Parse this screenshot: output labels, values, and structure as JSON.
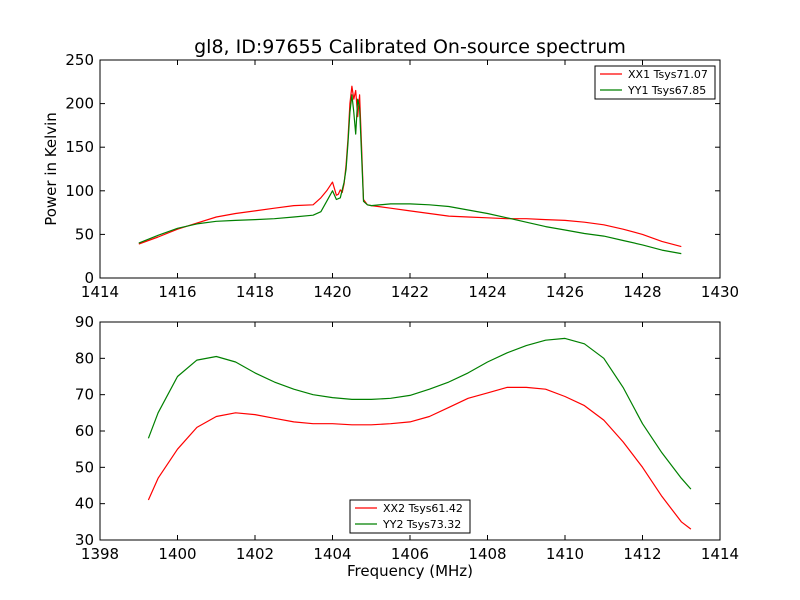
{
  "chart_data": [
    {
      "type": "line",
      "title": "gl8, ID:97655 Calibrated On-source spectrum",
      "xlabel": "",
      "ylabel": "Power in Kelvin",
      "xlim": [
        1414,
        1430
      ],
      "ylim": [
        0,
        250
      ],
      "xticks": [
        1414,
        1416,
        1418,
        1420,
        1422,
        1424,
        1426,
        1428,
        1430
      ],
      "yticks": [
        0,
        50,
        100,
        150,
        200,
        250
      ],
      "legend_position": "top-right",
      "series": [
        {
          "name": "XX1 Tsys71.07",
          "color": "#ff0000",
          "x": [
            1415.0,
            1415.5,
            1416.0,
            1416.5,
            1417.0,
            1417.5,
            1418.0,
            1418.5,
            1419.0,
            1419.5,
            1419.7,
            1419.85,
            1420.0,
            1420.1,
            1420.15,
            1420.2,
            1420.25,
            1420.3,
            1420.35,
            1420.4,
            1420.45,
            1420.5,
            1420.55,
            1420.6,
            1420.65,
            1420.7,
            1420.75,
            1420.8,
            1420.9,
            1421.0,
            1421.5,
            1422.0,
            1422.5,
            1423.0,
            1423.5,
            1424.0,
            1424.5,
            1425.0,
            1425.5,
            1426.0,
            1426.5,
            1427.0,
            1427.5,
            1428.0,
            1428.5,
            1429.0
          ],
          "y": [
            39,
            47,
            56,
            63,
            70,
            74,
            77,
            80,
            83,
            84,
            92,
            100,
            110,
            95,
            96,
            101,
            98,
            108,
            130,
            160,
            200,
            220,
            205,
            215,
            185,
            210,
            150,
            90,
            84,
            83,
            80,
            77,
            74,
            71,
            70,
            69,
            68,
            68,
            67,
            66,
            64,
            61,
            56,
            50,
            42,
            36
          ]
        },
        {
          "name": "YY1 Tsys67.85",
          "color": "#008000",
          "x": [
            1415.0,
            1415.5,
            1416.0,
            1416.5,
            1417.0,
            1417.5,
            1418.0,
            1418.5,
            1419.0,
            1419.5,
            1419.7,
            1419.85,
            1420.0,
            1420.1,
            1420.2,
            1420.3,
            1420.35,
            1420.4,
            1420.45,
            1420.5,
            1420.55,
            1420.6,
            1420.65,
            1420.7,
            1420.75,
            1420.8,
            1420.9,
            1421.0,
            1421.5,
            1422.0,
            1422.5,
            1423.0,
            1423.5,
            1424.0,
            1424.5,
            1425.0,
            1425.5,
            1426.0,
            1426.5,
            1427.0,
            1427.5,
            1428.0,
            1428.5,
            1429.0
          ],
          "y": [
            40,
            49,
            57,
            62,
            65,
            66,
            67,
            68,
            70,
            72,
            76,
            88,
            100,
            90,
            92,
            110,
            125,
            155,
            190,
            210,
            190,
            165,
            205,
            195,
            140,
            88,
            84,
            83,
            85,
            85,
            84,
            82,
            78,
            74,
            69,
            64,
            59,
            55,
            51,
            48,
            43,
            38,
            32,
            28
          ]
        }
      ]
    },
    {
      "type": "line",
      "title": "",
      "xlabel": "Frequency (MHz)",
      "ylabel": "",
      "xlim": [
        1398,
        1414
      ],
      "ylim": [
        30,
        90
      ],
      "xticks": [
        1398,
        1400,
        1402,
        1404,
        1406,
        1408,
        1410,
        1412,
        1414
      ],
      "yticks": [
        30,
        40,
        50,
        60,
        70,
        80,
        90
      ],
      "legend_position": "bottom-center",
      "series": [
        {
          "name": "XX2 Tsys61.42",
          "color": "#ff0000",
          "x": [
            1399.25,
            1399.5,
            1400.0,
            1400.5,
            1401.0,
            1401.5,
            1402.0,
            1402.5,
            1403.0,
            1403.5,
            1404.0,
            1404.5,
            1405.0,
            1405.5,
            1406.0,
            1406.5,
            1407.0,
            1407.5,
            1408.0,
            1408.5,
            1409.0,
            1409.5,
            1410.0,
            1410.5,
            1411.0,
            1411.5,
            1412.0,
            1412.5,
            1413.0,
            1413.25
          ],
          "y": [
            41,
            47,
            55,
            61,
            64,
            65,
            64.5,
            63.5,
            62.5,
            62,
            62,
            61.7,
            61.7,
            62,
            62.5,
            64,
            66.5,
            69,
            70.5,
            72,
            72,
            71.5,
            69.5,
            67,
            63,
            57,
            50,
            42,
            35,
            33
          ]
        },
        {
          "name": "YY2 Tsys73.32",
          "color": "#008000",
          "x": [
            1399.25,
            1399.5,
            1400.0,
            1400.5,
            1401.0,
            1401.5,
            1402.0,
            1402.5,
            1403.0,
            1403.5,
            1404.0,
            1404.5,
            1405.0,
            1405.5,
            1406.0,
            1406.5,
            1407.0,
            1407.5,
            1408.0,
            1408.5,
            1409.0,
            1409.5,
            1410.0,
            1410.5,
            1411.0,
            1411.5,
            1412.0,
            1412.5,
            1413.0,
            1413.25
          ],
          "y": [
            58,
            65,
            75,
            79.5,
            80.5,
            79,
            76,
            73.5,
            71.5,
            70,
            69.2,
            68.7,
            68.7,
            69,
            69.8,
            71.5,
            73.5,
            76,
            79,
            81.5,
            83.5,
            85,
            85.5,
            84,
            80,
            72,
            62,
            54,
            47,
            44
          ]
        }
      ]
    }
  ]
}
